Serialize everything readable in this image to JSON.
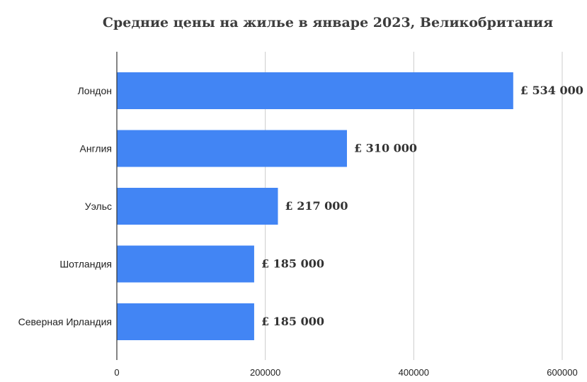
{
  "chart_data": {
    "type": "bar",
    "orientation": "horizontal",
    "title": "Средние цены на жилье в январе 2023, Великобритания",
    "categories": [
      "Лондон",
      "Англия",
      "Уэльс",
      "Шотландия",
      "Северная Ирландия"
    ],
    "values": [
      534000,
      310000,
      217000,
      185000,
      185000
    ],
    "data_labels": [
      "£ 534 000",
      "£ 310 000",
      "£ 217 000",
      "£ 185 000",
      "£ 185 000"
    ],
    "xlim": [
      0,
      600000
    ],
    "x_ticks": [
      0,
      200000,
      400000,
      600000
    ],
    "x_tick_labels": [
      "0",
      "200000",
      "400000",
      "600000"
    ],
    "xlabel": "",
    "ylabel": "",
    "grid": "vertical",
    "legend": "none",
    "bar_color": "#4285f4"
  }
}
